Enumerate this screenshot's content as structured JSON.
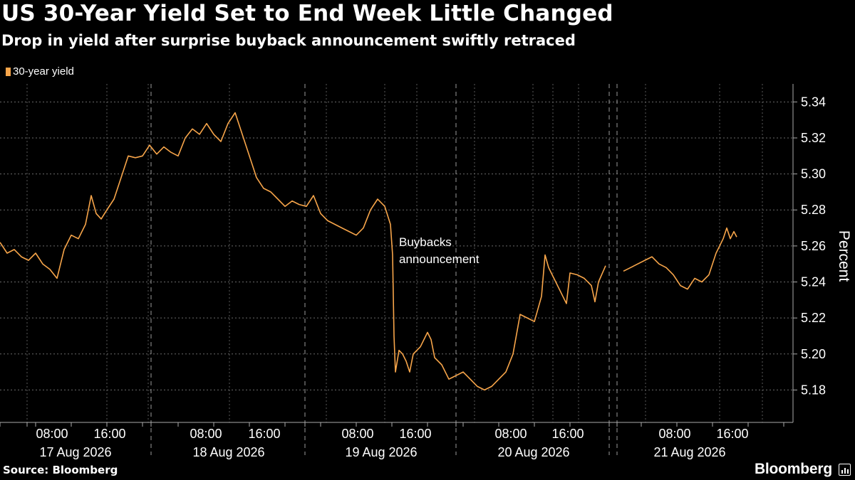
{
  "chart_data": {
    "type": "line",
    "title": "US 30-Year Yield Set to End Week Little Changed",
    "subtitle": "Drop in yield after surprise buyback announcement swiftly retraced",
    "ylabel": "Percent",
    "ylim": [
      5.162,
      5.35
    ],
    "yticks": [
      5.18,
      5.2,
      5.22,
      5.24,
      5.26,
      5.28,
      5.3,
      5.32,
      5.34
    ],
    "ytick_labels": [
      "5.18",
      "5.20",
      "5.22",
      "5.24",
      "5.26",
      "5.28",
      "5.30",
      "5.32",
      "5.34"
    ],
    "grid": true,
    "legend_position": "top-left",
    "xaxis": {
      "time_labels": [
        "08:00",
        "16:00",
        "08:00",
        "16:00",
        "08:00",
        "16:00",
        "08:00",
        "16:00",
        "08:00",
        "16:00"
      ],
      "date_labels": [
        "17 Aug 2026",
        "18 Aug 2026",
        "19 Aug 2026",
        "20 Aug 2026",
        "21 Aug 2026"
      ]
    },
    "series": [
      {
        "name": "30-year yield",
        "color": "#f7a54a",
        "segments": [
          [
            [
              0,
              5.262
            ],
            [
              10,
              5.256
            ],
            [
              20,
              5.258
            ],
            [
              30,
              5.254
            ],
            [
              40,
              5.252
            ],
            [
              50,
              5.256
            ],
            [
              60,
              5.25
            ],
            [
              70,
              5.247
            ],
            [
              80,
              5.242
            ],
            [
              90,
              5.258
            ],
            [
              100,
              5.266
            ],
            [
              110,
              5.264
            ],
            [
              120,
              5.272
            ],
            [
              128,
              5.288
            ],
            [
              135,
              5.278
            ],
            [
              142,
              5.275
            ],
            [
              150,
              5.28
            ],
            [
              160,
              5.286
            ],
            [
              170,
              5.298
            ],
            [
              180,
              5.31
            ],
            [
              190,
              5.309
            ],
            [
              200,
              5.31
            ],
            [
              210,
              5.316
            ],
            [
              220,
              5.311
            ],
            [
              230,
              5.315
            ],
            [
              240,
              5.312
            ],
            [
              250,
              5.31
            ],
            [
              260,
              5.32
            ],
            [
              270,
              5.325
            ],
            [
              280,
              5.322
            ],
            [
              290,
              5.328
            ],
            [
              300,
              5.322
            ],
            [
              310,
              5.318
            ],
            [
              320,
              5.328
            ],
            [
              330,
              5.334
            ],
            [
              340,
              5.322
            ],
            [
              350,
              5.31
            ],
            [
              360,
              5.298
            ],
            [
              370,
              5.292
            ],
            [
              380,
              5.29
            ],
            [
              390,
              5.286
            ],
            [
              400,
              5.282
            ],
            [
              410,
              5.285
            ],
            [
              420,
              5.283
            ],
            [
              430,
              5.282
            ],
            [
              440,
              5.288
            ],
            [
              450,
              5.278
            ],
            [
              460,
              5.274
            ],
            [
              470,
              5.272
            ],
            [
              480,
              5.27
            ],
            [
              490,
              5.268
            ],
            [
              500,
              5.266
            ],
            [
              510,
              5.27
            ],
            [
              520,
              5.28
            ],
            [
              530,
              5.286
            ],
            [
              540,
              5.282
            ],
            [
              548,
              5.272
            ],
            [
              551,
              5.255
            ],
            [
              553,
              5.21
            ],
            [
              555,
              5.19
            ],
            [
              560,
              5.202
            ],
            [
              565,
              5.2
            ],
            [
              570,
              5.196
            ],
            [
              575,
              5.19
            ],
            [
              580,
              5.2
            ],
            [
              590,
              5.204
            ],
            [
              600,
              5.212
            ],
            [
              605,
              5.208
            ],
            [
              610,
              5.198
            ],
            [
              620,
              5.194
            ],
            [
              630,
              5.186
            ],
            [
              640,
              5.188
            ],
            [
              650,
              5.19
            ],
            [
              660,
              5.186
            ],
            [
              670,
              5.182
            ],
            [
              680,
              5.18
            ],
            [
              690,
              5.182
            ],
            [
              700,
              5.186
            ],
            [
              710,
              5.19
            ],
            [
              720,
              5.2
            ],
            [
              730,
              5.222
            ],
            [
              740,
              5.22
            ],
            [
              750,
              5.218
            ],
            [
              760,
              5.232
            ],
            [
              765,
              5.255
            ],
            [
              770,
              5.248
            ],
            [
              780,
              5.24
            ],
            [
              790,
              5.232
            ],
            [
              795,
              5.228
            ],
            [
              800,
              5.245
            ],
            [
              810,
              5.244
            ],
            [
              820,
              5.242
            ],
            [
              830,
              5.238
            ],
            [
              835,
              5.229
            ],
            [
              840,
              5.24
            ],
            [
              850,
              5.249
            ]
          ],
          [
            [
              875,
              5.246
            ],
            [
              885,
              5.248
            ],
            [
              895,
              5.25
            ],
            [
              905,
              5.252
            ],
            [
              915,
              5.254
            ],
            [
              925,
              5.25
            ],
            [
              935,
              5.248
            ],
            [
              945,
              5.244
            ],
            [
              955,
              5.238
            ],
            [
              965,
              5.236
            ],
            [
              975,
              5.242
            ],
            [
              985,
              5.24
            ],
            [
              995,
              5.244
            ],
            [
              1005,
              5.256
            ],
            [
              1015,
              5.264
            ],
            [
              1020,
              5.27
            ],
            [
              1025,
              5.264
            ],
            [
              1030,
              5.268
            ],
            [
              1034,
              5.265
            ]
          ]
        ]
      }
    ],
    "annotations": [
      {
        "text_line1": "Buybacks",
        "text_line2": "announcement",
        "at_x": 553
      }
    ]
  },
  "footer": {
    "source": "Source: Bloomberg",
    "brand": "Bloomberg",
    "brand_icon": "bloomberg-terminal-icon"
  }
}
